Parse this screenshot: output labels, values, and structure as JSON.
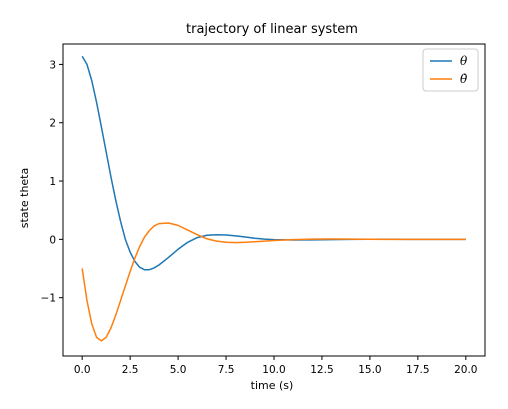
{
  "chart_data": {
    "type": "line",
    "title": "trajectory of linear system",
    "xlabel": "time (s)",
    "ylabel": "state theta",
    "xlim": [
      -1.0,
      21.0
    ],
    "ylim": [
      -2.0,
      3.35
    ],
    "xticks": [
      0.0,
      2.5,
      5.0,
      7.5,
      10.0,
      12.5,
      15.0,
      17.5,
      20.0
    ],
    "xtick_labels": [
      "0.0",
      "2.5",
      "5.0",
      "7.5",
      "10.0",
      "12.5",
      "15.0",
      "17.5",
      "20.0"
    ],
    "yticks": [
      -1,
      0,
      1,
      2,
      3
    ],
    "ytick_labels": [
      "−1",
      "0",
      "1",
      "2",
      "3"
    ],
    "grid": false,
    "legend_position": "top-right",
    "series": [
      {
        "name": "θ",
        "color": "#1f77b4",
        "x": [
          0,
          0.25,
          0.5,
          0.75,
          1,
          1.25,
          1.5,
          1.75,
          2,
          2.25,
          2.5,
          2.75,
          3,
          3.25,
          3.5,
          3.75,
          4,
          4.5,
          5,
          5.5,
          6,
          6.5,
          7,
          7.5,
          8,
          8.5,
          9,
          9.5,
          10,
          11,
          12,
          13,
          14,
          15,
          16,
          17,
          18,
          19,
          20
        ],
        "y": [
          3.14,
          3.0,
          2.72,
          2.35,
          1.93,
          1.5,
          1.07,
          0.67,
          0.31,
          0.0,
          -0.22,
          -0.38,
          -0.48,
          -0.52,
          -0.52,
          -0.49,
          -0.44,
          -0.31,
          -0.17,
          -0.05,
          0.03,
          0.07,
          0.08,
          0.075,
          0.06,
          0.04,
          0.02,
          0.005,
          -0.005,
          -0.01,
          -0.008,
          -0.004,
          -0.001,
          0.001,
          0.001,
          0.0,
          0.0,
          0.0,
          0.0
        ]
      },
      {
        "name": "θ̇",
        "color": "#ff7f0e",
        "x": [
          0,
          0.25,
          0.5,
          0.75,
          1,
          1.25,
          1.5,
          1.75,
          2,
          2.25,
          2.5,
          2.75,
          3,
          3.25,
          3.5,
          3.75,
          4,
          4.5,
          5,
          5.5,
          6,
          6.5,
          7,
          7.5,
          8,
          8.5,
          9,
          9.5,
          10,
          11,
          12,
          13,
          14,
          15,
          16,
          17,
          18,
          19,
          20
        ],
        "y": [
          -0.5,
          -1.05,
          -1.45,
          -1.68,
          -1.74,
          -1.68,
          -1.52,
          -1.3,
          -1.05,
          -0.8,
          -0.55,
          -0.32,
          -0.12,
          0.04,
          0.15,
          0.23,
          0.27,
          0.28,
          0.24,
          0.16,
          0.08,
          0.01,
          -0.03,
          -0.05,
          -0.055,
          -0.05,
          -0.04,
          -0.03,
          -0.02,
          -0.005,
          0.005,
          0.006,
          0.004,
          0.002,
          0.0,
          0.0,
          0.0,
          0.0,
          0.0
        ]
      }
    ]
  }
}
